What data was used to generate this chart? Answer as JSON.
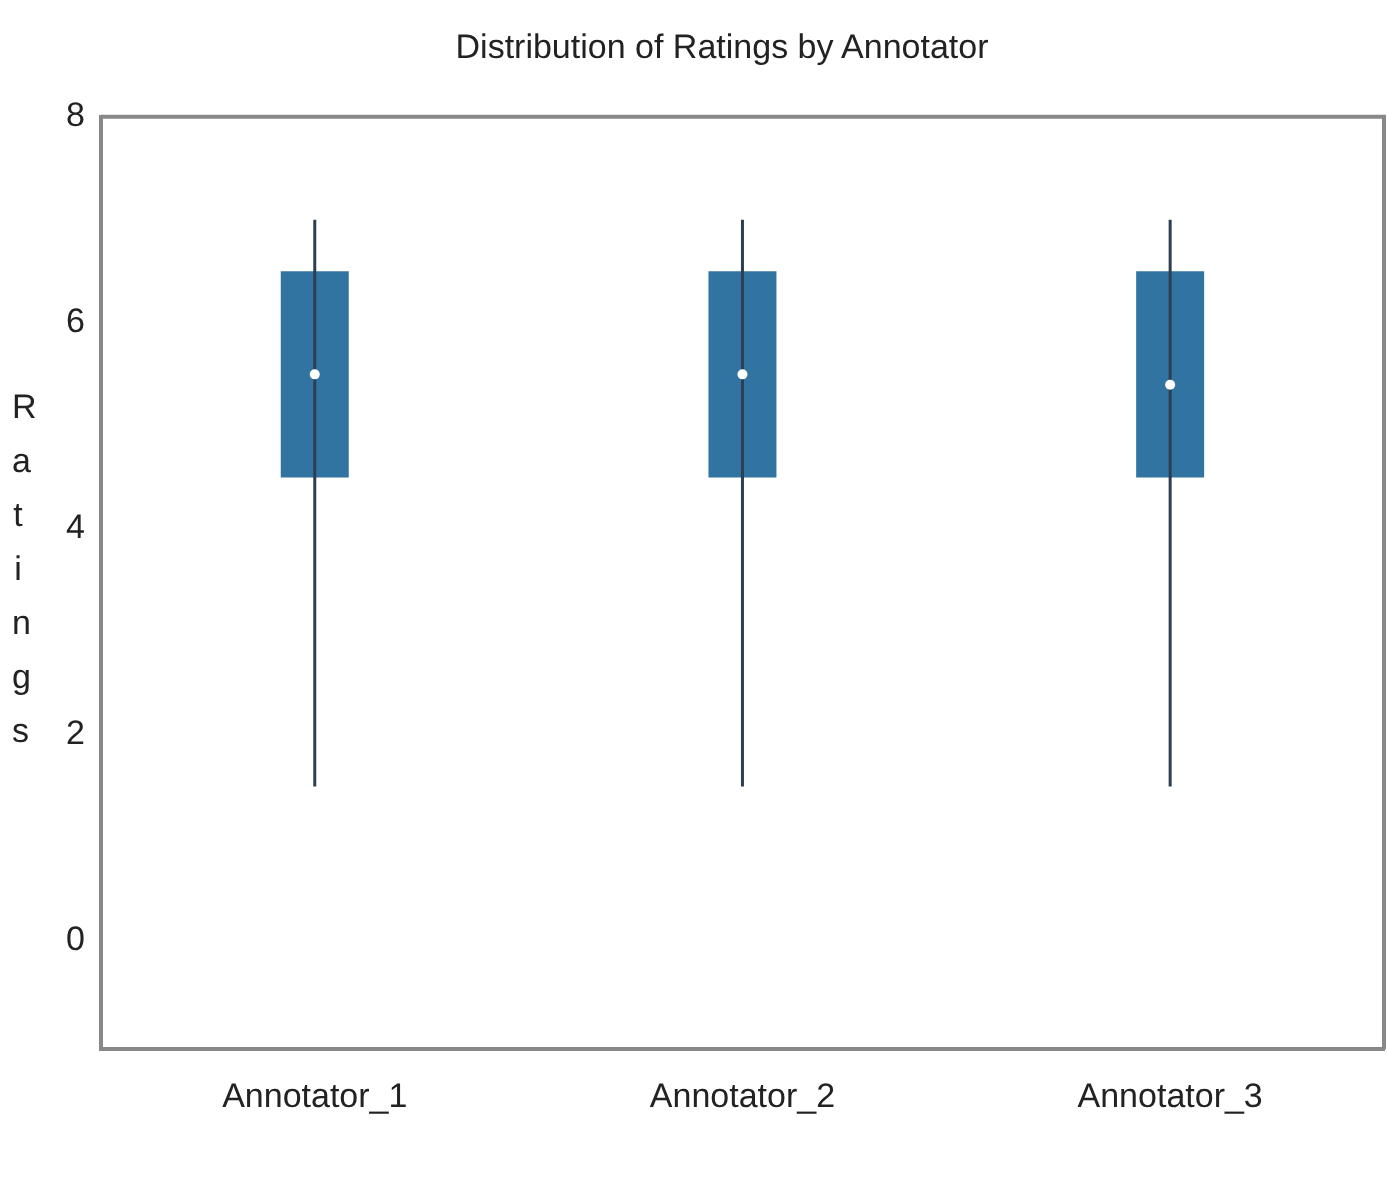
{
  "chart_data": {
    "type": "box",
    "title": "Distribution of Ratings by Annotator",
    "ylabel": "Ratings",
    "categories": [
      "Annotator_1",
      "Annotator_2",
      "Annotator_3"
    ],
    "boxes": [
      {
        "low": 1.5,
        "q1": 4.5,
        "median": 5.5,
        "q3": 6.5,
        "high": 7
      },
      {
        "low": 1.5,
        "q1": 4.5,
        "median": 5.5,
        "q3": 6.5,
        "high": 7
      },
      {
        "low": 1.5,
        "q1": 4.5,
        "median": 5.4,
        "q3": 6.5,
        "high": 7
      }
    ],
    "color": "#3274a1",
    "ylim": [
      -1.05,
      8
    ],
    "yticks": [
      0,
      2,
      4,
      6,
      8
    ],
    "grid": false,
    "legend": false
  }
}
